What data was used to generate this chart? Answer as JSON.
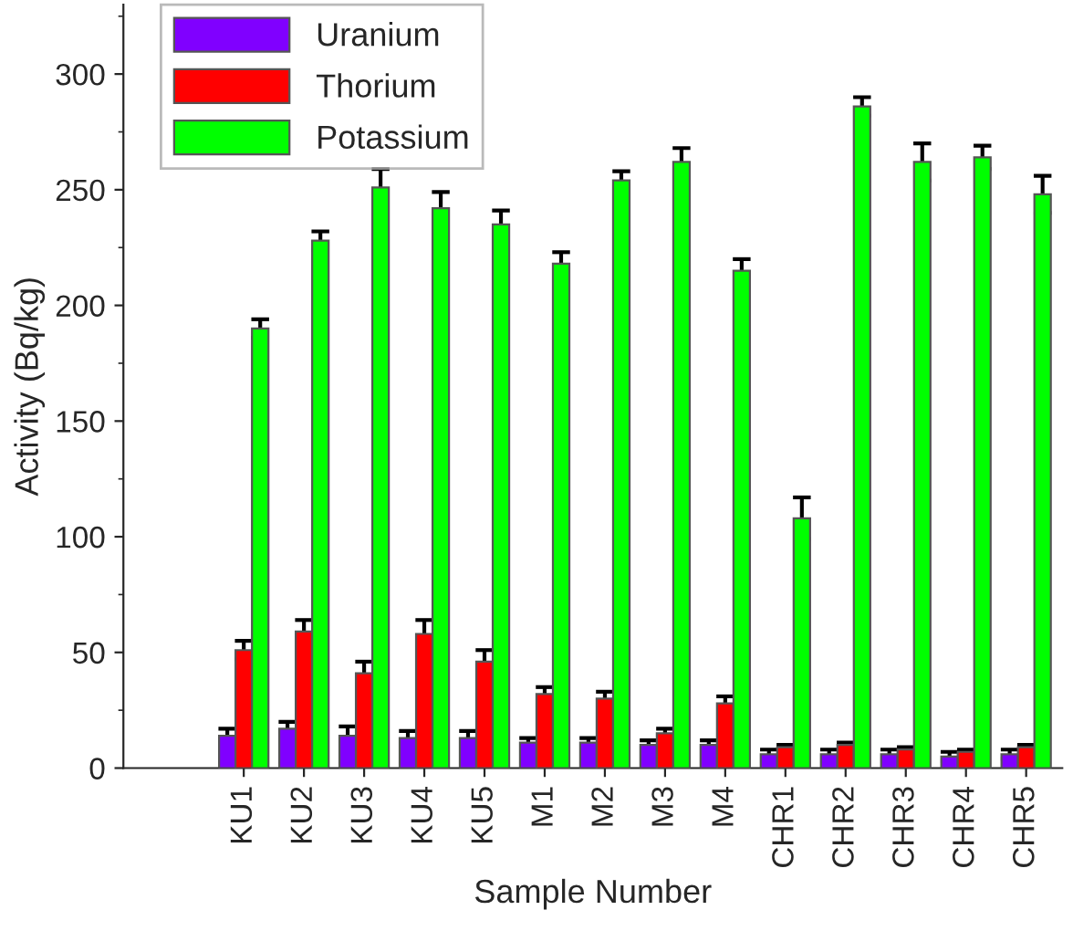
{
  "chart_data": {
    "type": "bar",
    "xlabel": "Sample Number",
    "ylabel": "Activity (Bq/kg)",
    "categories": [
      "KU1",
      "KU2",
      "KU3",
      "KU4",
      "KU5",
      "M1",
      "M2",
      "M3",
      "M4",
      "CHR1",
      "CHR2",
      "CHR3",
      "CHR4",
      "CHR5"
    ],
    "series": [
      {
        "name": "Uranium",
        "color": "#8000ff",
        "values": [
          14,
          17,
          14,
          13,
          13,
          11,
          11,
          10,
          10,
          6,
          6,
          6,
          5,
          6
        ],
        "errors": [
          3,
          3,
          4,
          3,
          3,
          2,
          2,
          2,
          2,
          2,
          2,
          2,
          2,
          2
        ]
      },
      {
        "name": "Thorium",
        "color": "#ff0000",
        "values": [
          51,
          59,
          41,
          58,
          46,
          32,
          30,
          15,
          28,
          9,
          10,
          8,
          7,
          9
        ],
        "errors": [
          4,
          5,
          5,
          6,
          5,
          3,
          3,
          2,
          3,
          1,
          1,
          1,
          1,
          1
        ]
      },
      {
        "name": "Potassium",
        "color": "#00ff00",
        "values": [
          190,
          228,
          251,
          242,
          235,
          218,
          254,
          262,
          215,
          108,
          286,
          262,
          264,
          248
        ],
        "errors": [
          4,
          4,
          8,
          7,
          6,
          5,
          4,
          6,
          5,
          9,
          4,
          8,
          5,
          8
        ]
      }
    ],
    "ylim": [
      0,
      330
    ],
    "yticks": [
      0,
      50,
      100,
      150,
      200,
      250,
      300
    ],
    "grid": false,
    "legend": "top left"
  }
}
